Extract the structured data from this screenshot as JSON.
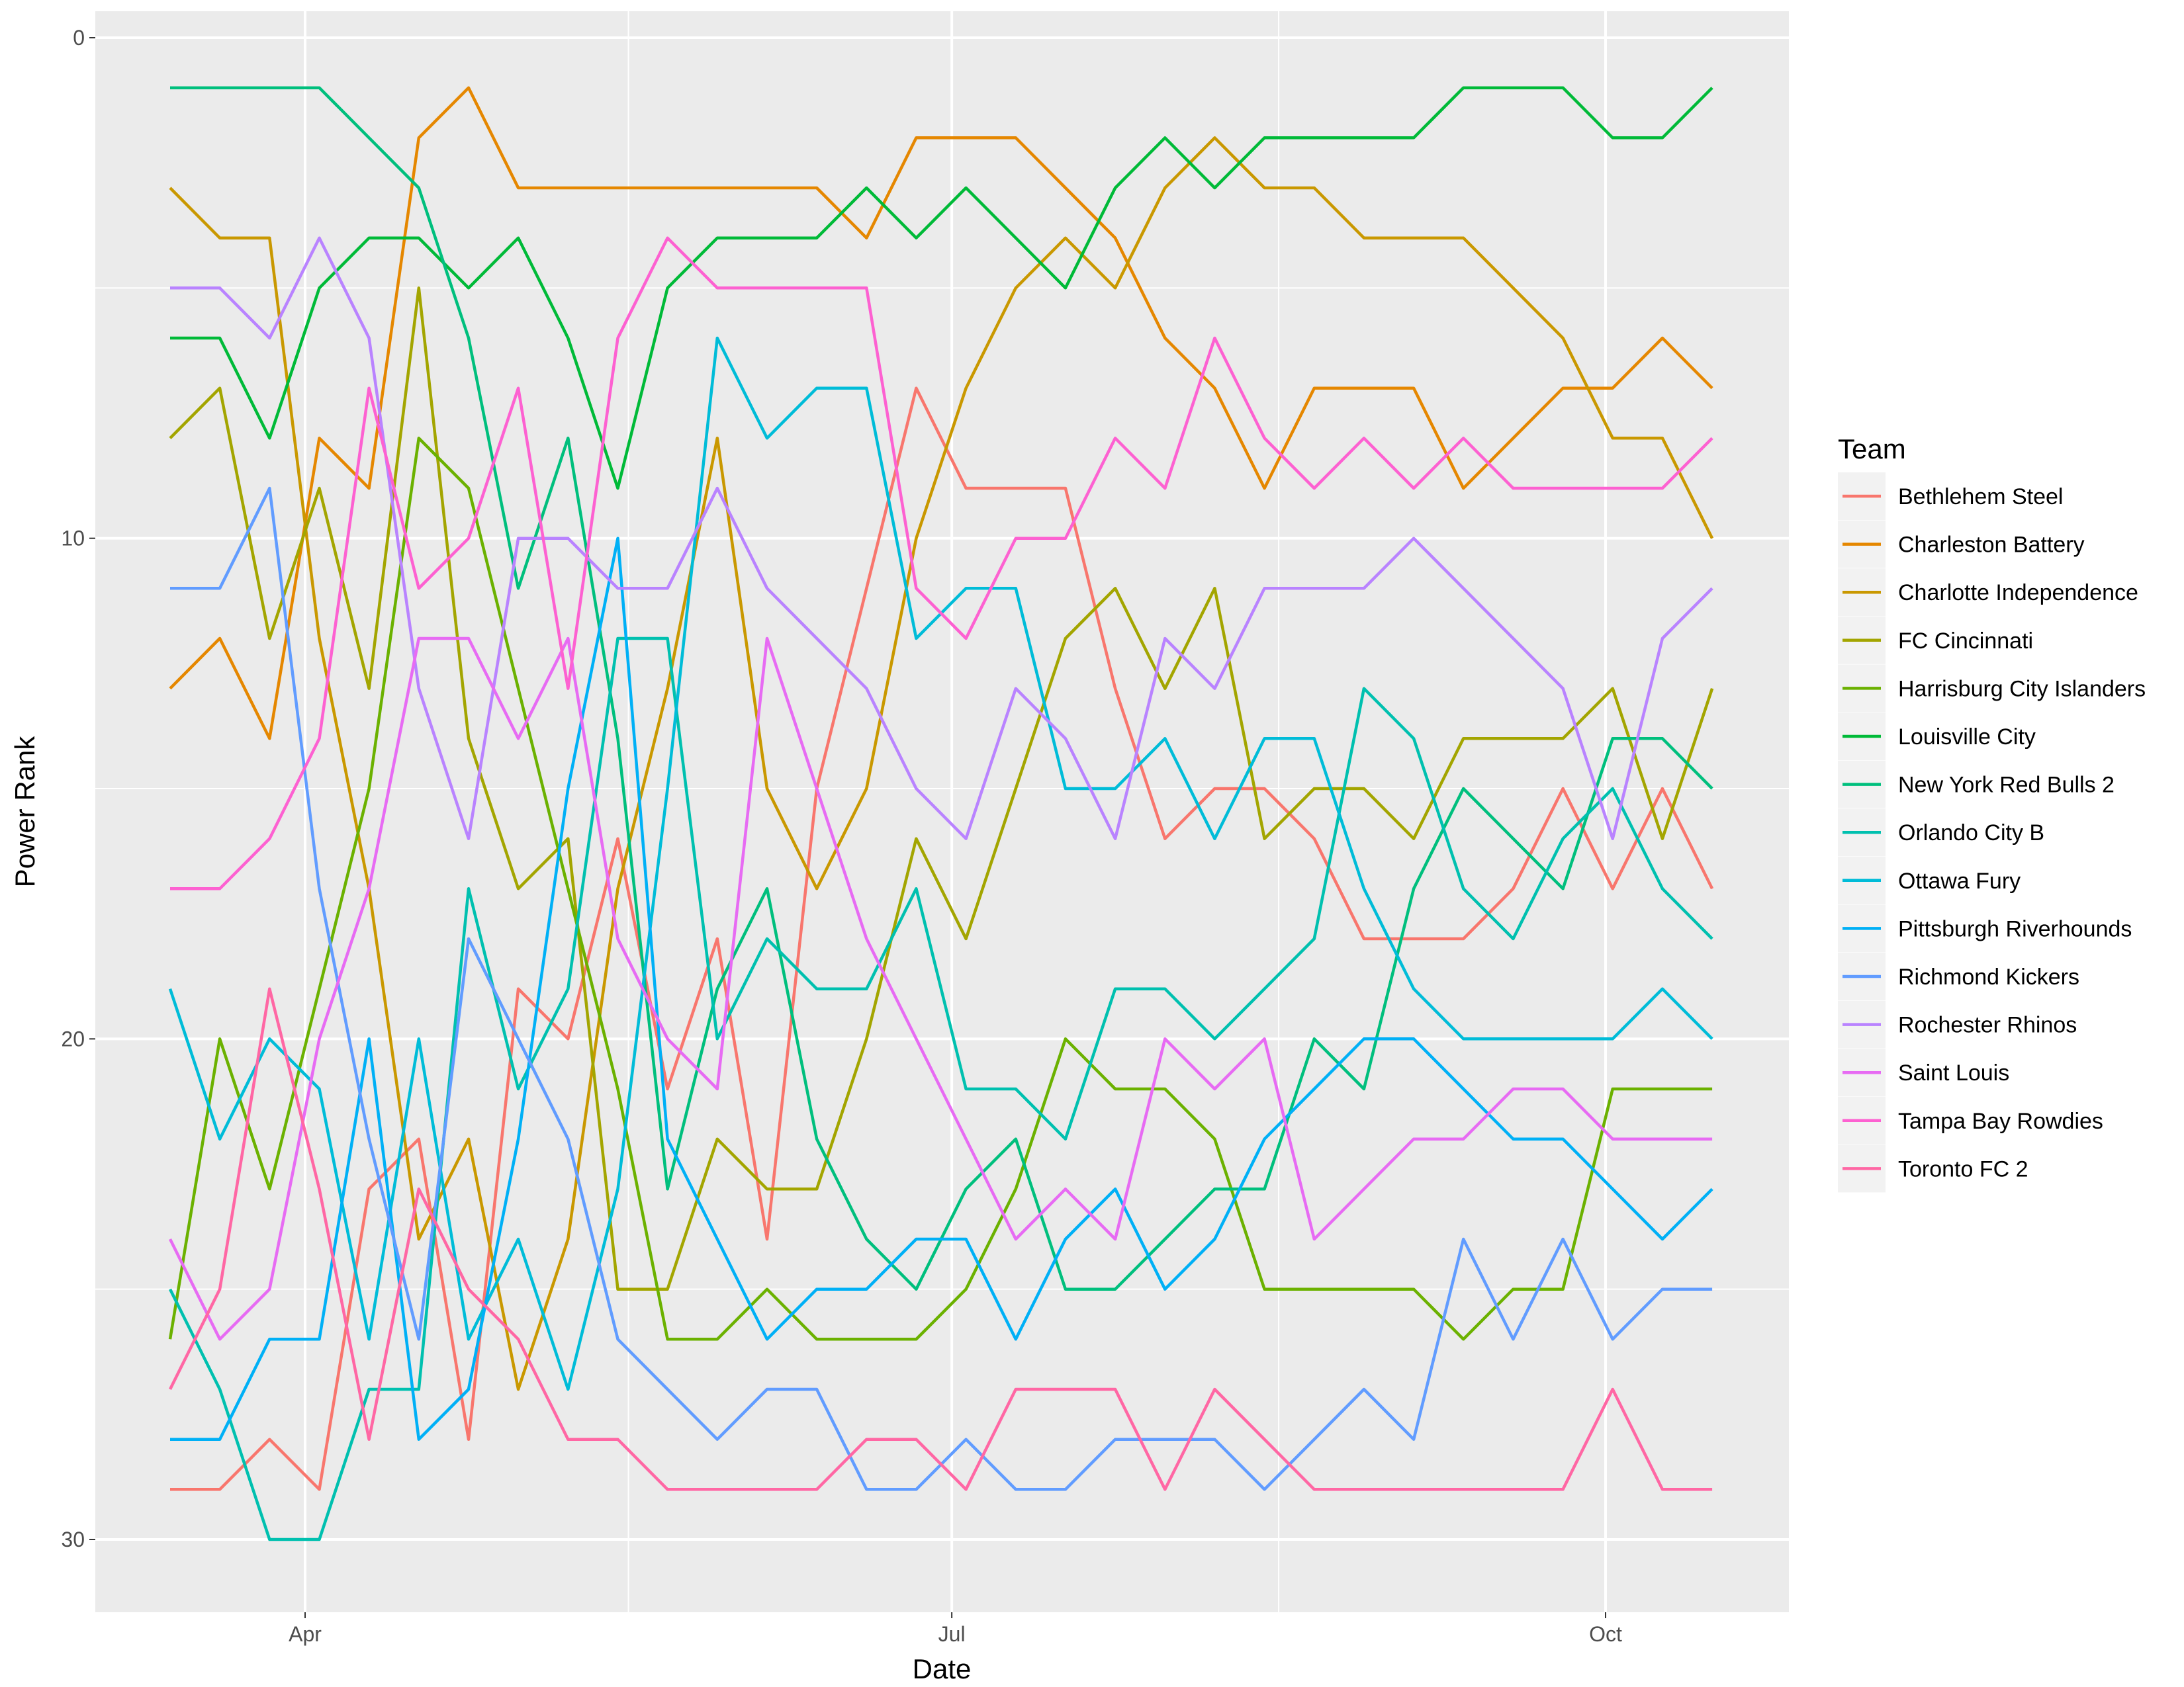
{
  "chart_data": {
    "type": "line",
    "title": "",
    "xlabel": "Date",
    "ylabel": "Power Rank",
    "y_reversed": true,
    "ylim": [
      31.5,
      -1
    ],
    "y_ticks": [
      0,
      10,
      20,
      30
    ],
    "x_ticks": [
      {
        "date": "2018-04-01",
        "label": "Apr"
      },
      {
        "date": "2018-07-01",
        "label": "Jul"
      },
      {
        "date": "2018-10-01",
        "label": "Oct"
      }
    ],
    "grid": true,
    "panel_background": "#EBEBEB",
    "legend": {
      "title": "Team",
      "position": "right"
    },
    "x_start": "2018-03-13",
    "x_step_days": 7,
    "series": [
      {
        "name": "Bethlehem Steel",
        "color": "#F8766D",
        "values": [
          29,
          29,
          28,
          29,
          23,
          22,
          28,
          19,
          20,
          16,
          21,
          18,
          24,
          15,
          11,
          7,
          9,
          9,
          9,
          13,
          16,
          15,
          15,
          16,
          18,
          18,
          18,
          17,
          15,
          17,
          15,
          17
        ]
      },
      {
        "name": "Charleston Battery",
        "color": "#E58700",
        "values": [
          13,
          12,
          14,
          8,
          9,
          2,
          1,
          3,
          3,
          3,
          3,
          3,
          3,
          3,
          4,
          2,
          2,
          2,
          3,
          4,
          6,
          7,
          9,
          7,
          7,
          7,
          9,
          8,
          7,
          7,
          6,
          7
        ]
      },
      {
        "name": "Charlotte Independence",
        "color": "#C99800",
        "values": [
          3,
          4,
          4,
          12,
          17,
          24,
          22,
          27,
          24,
          17,
          13,
          8,
          15,
          17,
          15,
          10,
          7,
          5,
          4,
          5,
          3,
          2,
          3,
          3,
          4,
          4,
          4,
          5,
          6,
          8,
          8,
          10
        ]
      },
      {
        "name": "FC Cincinnati",
        "color": "#A3A500",
        "values": [
          8,
          7,
          12,
          9,
          13,
          5,
          14,
          17,
          16,
          25,
          25,
          22,
          23,
          23,
          20,
          16,
          18,
          15,
          12,
          11,
          13,
          11,
          16,
          15,
          15,
          16,
          14,
          14,
          14,
          13,
          16,
          13
        ]
      },
      {
        "name": "Harrisburg City Islanders",
        "color": "#6BB100",
        "values": [
          26,
          20,
          23,
          19,
          15,
          8,
          9,
          13,
          17,
          21,
          26,
          26,
          25,
          26,
          26,
          26,
          25,
          23,
          20,
          21,
          21,
          22,
          25,
          25,
          25,
          25,
          26,
          25,
          25,
          21,
          21,
          21
        ]
      },
      {
        "name": "Louisville City",
        "color": "#00BA38",
        "values": [
          6,
          6,
          8,
          5,
          4,
          4,
          5,
          4,
          6,
          9,
          5,
          4,
          4,
          4,
          3,
          4,
          3,
          4,
          5,
          3,
          2,
          3,
          2,
          2,
          2,
          2,
          1,
          1,
          1,
          2,
          2,
          1
        ]
      },
      {
        "name": "New York Red Bulls 2",
        "color": "#00BF7D",
        "values": [
          1,
          1,
          1,
          1,
          2,
          3,
          6,
          11,
          8,
          14,
          23,
          19,
          17,
          22,
          24,
          25,
          23,
          22,
          25,
          25,
          24,
          23,
          23,
          20,
          21,
          17,
          15,
          16,
          17,
          14,
          14,
          15
        ]
      },
      {
        "name": "Orlando City B",
        "color": "#00C0AF",
        "values": [
          25,
          27,
          30,
          30,
          27,
          27,
          17,
          21,
          19,
          12,
          12,
          20,
          18,
          19,
          19,
          17,
          21,
          21,
          22,
          19,
          19,
          20,
          19,
          18,
          13,
          14,
          17,
          18,
          16,
          15,
          17,
          18
        ]
      },
      {
        "name": "Ottawa Fury",
        "color": "#00BCD8",
        "values": [
          19,
          22,
          20,
          21,
          26,
          20,
          26,
          24,
          27,
          23,
          15,
          6,
          8,
          7,
          7,
          12,
          11,
          11,
          15,
          15,
          14,
          16,
          14,
          14,
          17,
          19,
          20,
          20,
          20,
          20,
          19,
          20
        ]
      },
      {
        "name": "Pittsburgh Riverhounds",
        "color": "#00B0F6",
        "values": [
          28,
          28,
          26,
          26,
          20,
          28,
          27,
          22,
          15,
          10,
          22,
          24,
          26,
          25,
          25,
          24,
          24,
          26,
          24,
          23,
          25,
          24,
          22,
          21,
          20,
          20,
          21,
          22,
          22,
          23,
          24,
          23
        ]
      },
      {
        "name": "Richmond Kickers",
        "color": "#619CFF",
        "values": [
          11,
          11,
          9,
          17,
          22,
          26,
          18,
          20,
          22,
          26,
          27,
          28,
          27,
          27,
          29,
          29,
          28,
          29,
          29,
          28,
          28,
          28,
          29,
          28,
          27,
          28,
          24,
          26,
          24,
          26,
          25,
          25
        ]
      },
      {
        "name": "Rochester Rhinos",
        "color": "#B983FF",
        "values": [
          5,
          5,
          6,
          4,
          6,
          13,
          16,
          10,
          10,
          11,
          11,
          9,
          11,
          12,
          13,
          15,
          16,
          13,
          14,
          16,
          12,
          13,
          11,
          11,
          11,
          10,
          11,
          12,
          13,
          16,
          12,
          11
        ]
      },
      {
        "name": "Saint Louis",
        "color": "#E76BF3",
        "values": [
          24,
          26,
          25,
          20,
          17,
          12,
          12,
          14,
          12,
          18,
          20,
          21,
          12,
          15,
          18,
          20,
          22,
          24,
          23,
          24,
          20,
          21,
          20,
          24,
          23,
          22,
          22,
          21,
          21,
          22,
          22,
          22
        ]
      },
      {
        "name": "Tampa Bay Rowdies",
        "color": "#FD61D1",
        "values": [
          17,
          17,
          16,
          14,
          7,
          11,
          10,
          7,
          13,
          6,
          4,
          5,
          5,
          5,
          5,
          11,
          12,
          10,
          10,
          8,
          9,
          6,
          8,
          9,
          8,
          9,
          8,
          9,
          9,
          9,
          9,
          8
        ]
      },
      {
        "name": "Toronto FC 2",
        "color": "#FF67A4",
        "values": [
          27,
          25,
          19,
          23,
          28,
          23,
          25,
          26,
          28,
          28,
          29,
          29,
          29,
          29,
          28,
          28,
          29,
          27,
          27,
          27,
          29,
          27,
          28,
          29,
          29,
          29,
          29,
          29,
          29,
          27,
          29,
          29
        ]
      }
    ]
  }
}
